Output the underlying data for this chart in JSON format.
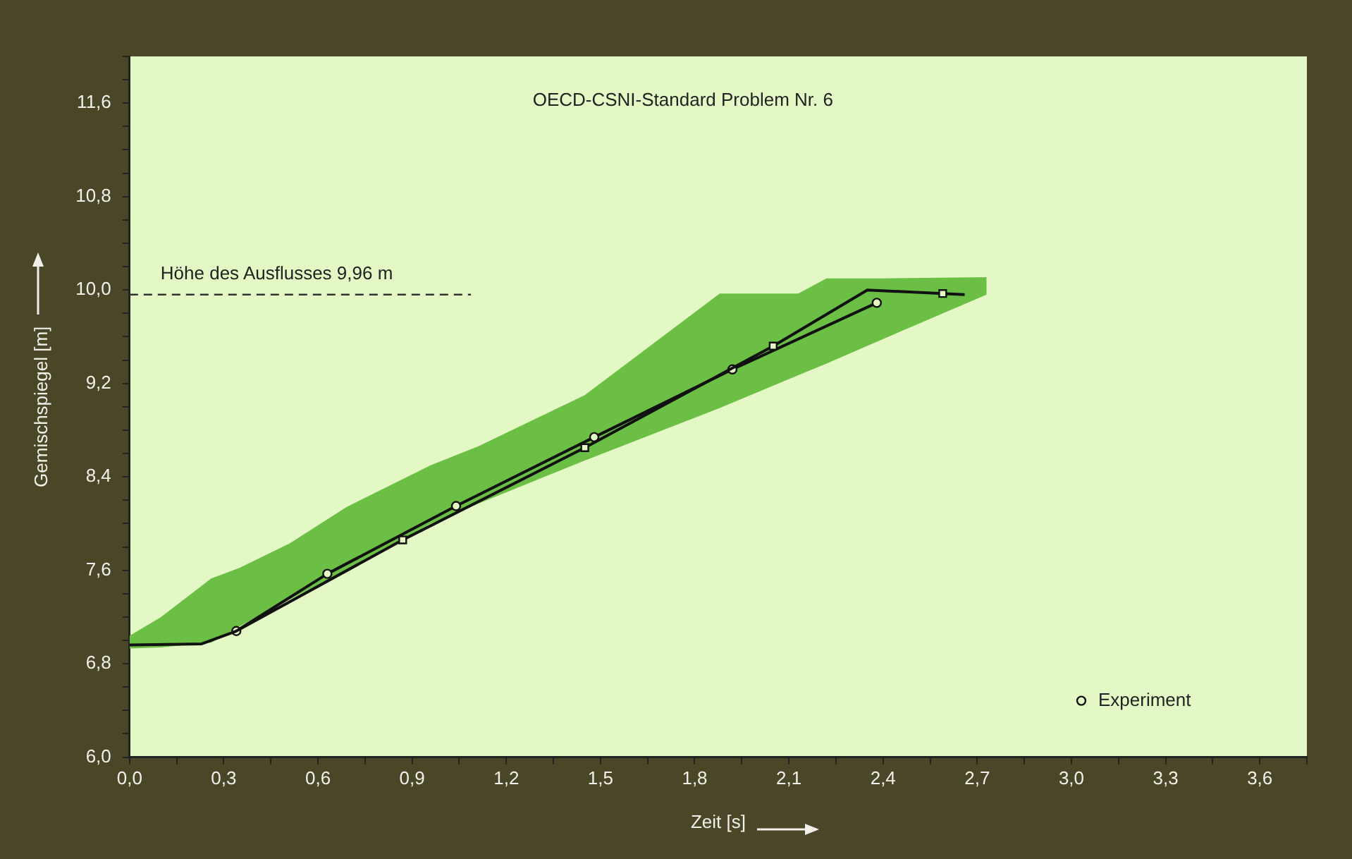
{
  "chart_data": {
    "type": "line",
    "title": "OECD-CSNI-Standard Problem Nr. 6",
    "xlabel": "Zeit [s]",
    "ylabel": "Gemischspiegel [m]",
    "xlim": [
      0,
      3.75
    ],
    "ylim": [
      6.0,
      12.0
    ],
    "xticks": [
      {
        "value": 0,
        "label": "0,0"
      },
      {
        "value": 0.15,
        "label": null
      },
      {
        "value": 0.3,
        "label": "0,3"
      },
      {
        "value": 0.45,
        "label": null
      },
      {
        "value": 0.6,
        "label": "0,6"
      },
      {
        "value": 0.75,
        "label": null
      },
      {
        "value": 0.9,
        "label": "0,9"
      },
      {
        "value": 1.05,
        "label": null
      },
      {
        "value": 1.2,
        "label": "1,2"
      },
      {
        "value": 1.35,
        "label": null
      },
      {
        "value": 1.5,
        "label": "1,5"
      },
      {
        "value": 1.65,
        "label": null
      },
      {
        "value": 1.8,
        "label": "1,8"
      },
      {
        "value": 1.95,
        "label": null
      },
      {
        "value": 2.1,
        "label": "2,1"
      },
      {
        "value": 2.25,
        "label": null
      },
      {
        "value": 2.4,
        "label": "2,4"
      },
      {
        "value": 2.55,
        "label": null
      },
      {
        "value": 2.7,
        "label": "2,7"
      },
      {
        "value": 2.85,
        "label": null
      },
      {
        "value": 3.0,
        "label": "3,0"
      },
      {
        "value": 3.15,
        "label": null
      },
      {
        "value": 3.3,
        "label": "3,3"
      },
      {
        "value": 3.45,
        "label": null
      },
      {
        "value": 3.6,
        "label": "3,6"
      },
      {
        "value": 3.75,
        "label": null
      }
    ],
    "yticks": [
      {
        "value": 6.0,
        "label": "6,0"
      },
      {
        "value": 6.2,
        "label": null
      },
      {
        "value": 6.4,
        "label": null
      },
      {
        "value": 6.6,
        "label": null
      },
      {
        "value": 6.8,
        "label": "6,8"
      },
      {
        "value": 7.0,
        "label": null
      },
      {
        "value": 7.2,
        "label": null
      },
      {
        "value": 7.4,
        "label": null
      },
      {
        "value": 7.6,
        "label": "7,6"
      },
      {
        "value": 7.8,
        "label": null
      },
      {
        "value": 8.0,
        "label": null
      },
      {
        "value": 8.2,
        "label": null
      },
      {
        "value": 8.4,
        "label": "8,4"
      },
      {
        "value": 8.6,
        "label": null
      },
      {
        "value": 8.8,
        "label": null
      },
      {
        "value": 9.0,
        "label": null
      },
      {
        "value": 9.2,
        "label": "9,2"
      },
      {
        "value": 9.4,
        "label": null
      },
      {
        "value": 9.6,
        "label": null
      },
      {
        "value": 9.8,
        "label": null
      },
      {
        "value": 10.0,
        "label": "10,0"
      },
      {
        "value": 10.2,
        "label": null
      },
      {
        "value": 10.4,
        "label": null
      },
      {
        "value": 10.6,
        "label": null
      },
      {
        "value": 10.8,
        "label": "10,8"
      },
      {
        "value": 11.0,
        "label": null
      },
      {
        "value": 11.2,
        "label": null
      },
      {
        "value": 11.4,
        "label": null
      },
      {
        "value": 11.6,
        "label": "11,6"
      },
      {
        "value": 11.8,
        "label": null
      },
      {
        "value": 12.0,
        "label": null
      }
    ],
    "grid": false,
    "legend": "bottom right",
    "ref_lines": [
      {
        "axis": "y",
        "value": 9.96,
        "label": "Höhe des Ausflusses 9,96 m",
        "line_style": "dashed",
        "color": "#333333"
      }
    ],
    "series": [
      {
        "type": "line",
        "x": [
          0,
          0.1,
          0.26,
          0.35,
          0.51,
          0.69,
          0.96,
          1.11,
          1.45,
          1.88,
          2.13,
          2.22,
          2.4,
          2.73
        ],
        "values": [
          null,
          null,
          null,
          null,
          null,
          null,
          null,
          null,
          null,
          null,
          null,
          null,
          null,
          null
        ],
        "upper": [
          7.04,
          7.2,
          7.53,
          7.62,
          7.83,
          8.14,
          8.5,
          8.66,
          9.1,
          9.97,
          9.97,
          10.1,
          10.1,
          10.11
        ],
        "lower": [
          6.93,
          6.94,
          6.98,
          7.12,
          7.35,
          7.6,
          8.0,
          8.17,
          8.54,
          8.99,
          9.27,
          9.37,
          9.58,
          9.96
        ],
        "color": "#6cbf45"
      },
      {
        "type": "line",
        "x": [
          0,
          0.23,
          0.34,
          0.87,
          1.45,
          2.05,
          2.35,
          2.66
        ],
        "values": [
          6.96,
          6.97,
          7.08,
          7.86,
          8.65,
          9.52,
          10.0,
          9.96
        ],
        "color": "#111111",
        "marker": "none"
      },
      {
        "type": "scatter",
        "x": [
          0.87,
          1.45,
          2.05,
          2.59
        ],
        "values": [
          7.86,
          8.65,
          9.52,
          9.97
        ],
        "color": "#111111",
        "marker": "square"
      },
      {
        "type": "line",
        "name": "Experiment",
        "x": [
          0.34,
          0.63,
          1.04,
          1.48,
          1.92,
          2.38
        ],
        "values": [
          7.08,
          7.57,
          8.15,
          8.74,
          9.32,
          9.89
        ],
        "color": "#111111",
        "marker": "circle"
      }
    ]
  }
}
